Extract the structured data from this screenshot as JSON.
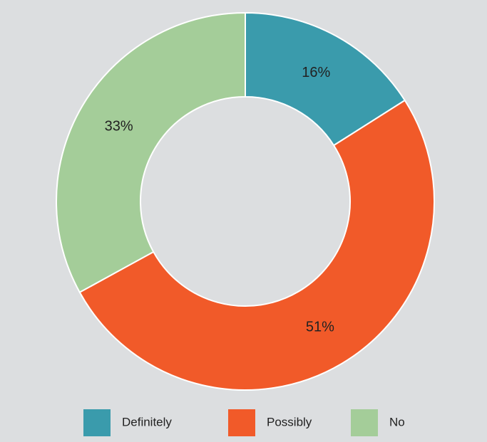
{
  "chart_data": {
    "type": "donut",
    "categories": [
      "Definitely",
      "Possibly",
      "No"
    ],
    "values": [
      16,
      51,
      33
    ],
    "value_labels": [
      "16%",
      "51%",
      "33%"
    ],
    "colors": [
      "#3a9bac",
      "#f15a29",
      "#a4cd99"
    ],
    "legend": "bottom"
  }
}
